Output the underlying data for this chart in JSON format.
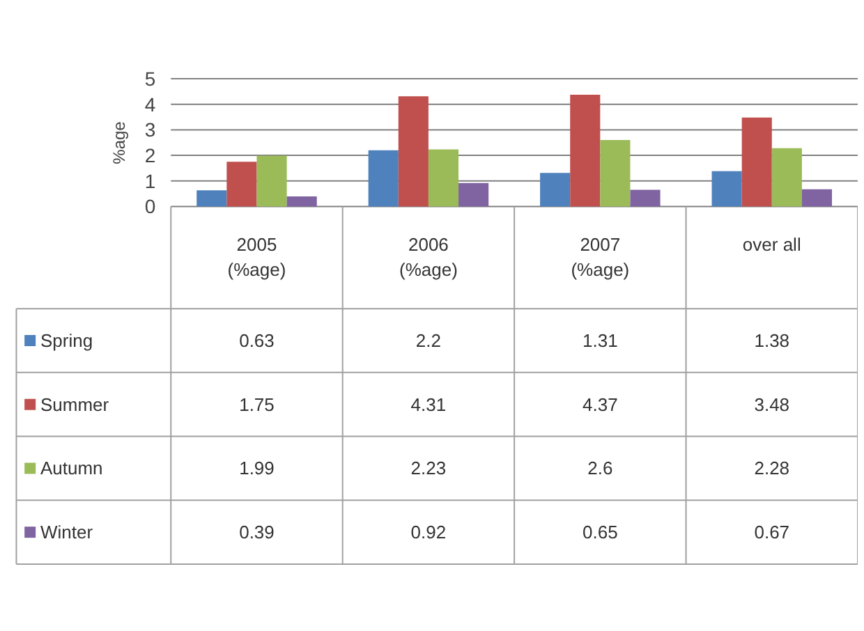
{
  "chart_data": {
    "type": "bar",
    "ylabel": "%age",
    "categories": [
      "2005\n(%age)",
      "2006\n(%age)",
      "2007\n(%age)",
      "over all"
    ],
    "series": [
      {
        "name": "Spring",
        "color": "#4f81bd",
        "values": [
          0.63,
          2.2,
          1.31,
          1.38
        ]
      },
      {
        "name": "Summer",
        "color": "#c0504d",
        "values": [
          1.75,
          4.31,
          4.37,
          3.48
        ]
      },
      {
        "name": "Autumn",
        "color": "#9bbb59",
        "values": [
          1.99,
          2.23,
          2.6,
          2.28
        ]
      },
      {
        "name": "Winter",
        "color": "#8064a2",
        "values": [
          0.39,
          0.92,
          0.65,
          0.67
        ]
      }
    ],
    "ylim": [
      0,
      5
    ],
    "yticks": [
      0,
      1,
      2,
      3,
      4,
      5
    ],
    "grid": "y",
    "data_labels": true,
    "legend": "bottom left"
  }
}
